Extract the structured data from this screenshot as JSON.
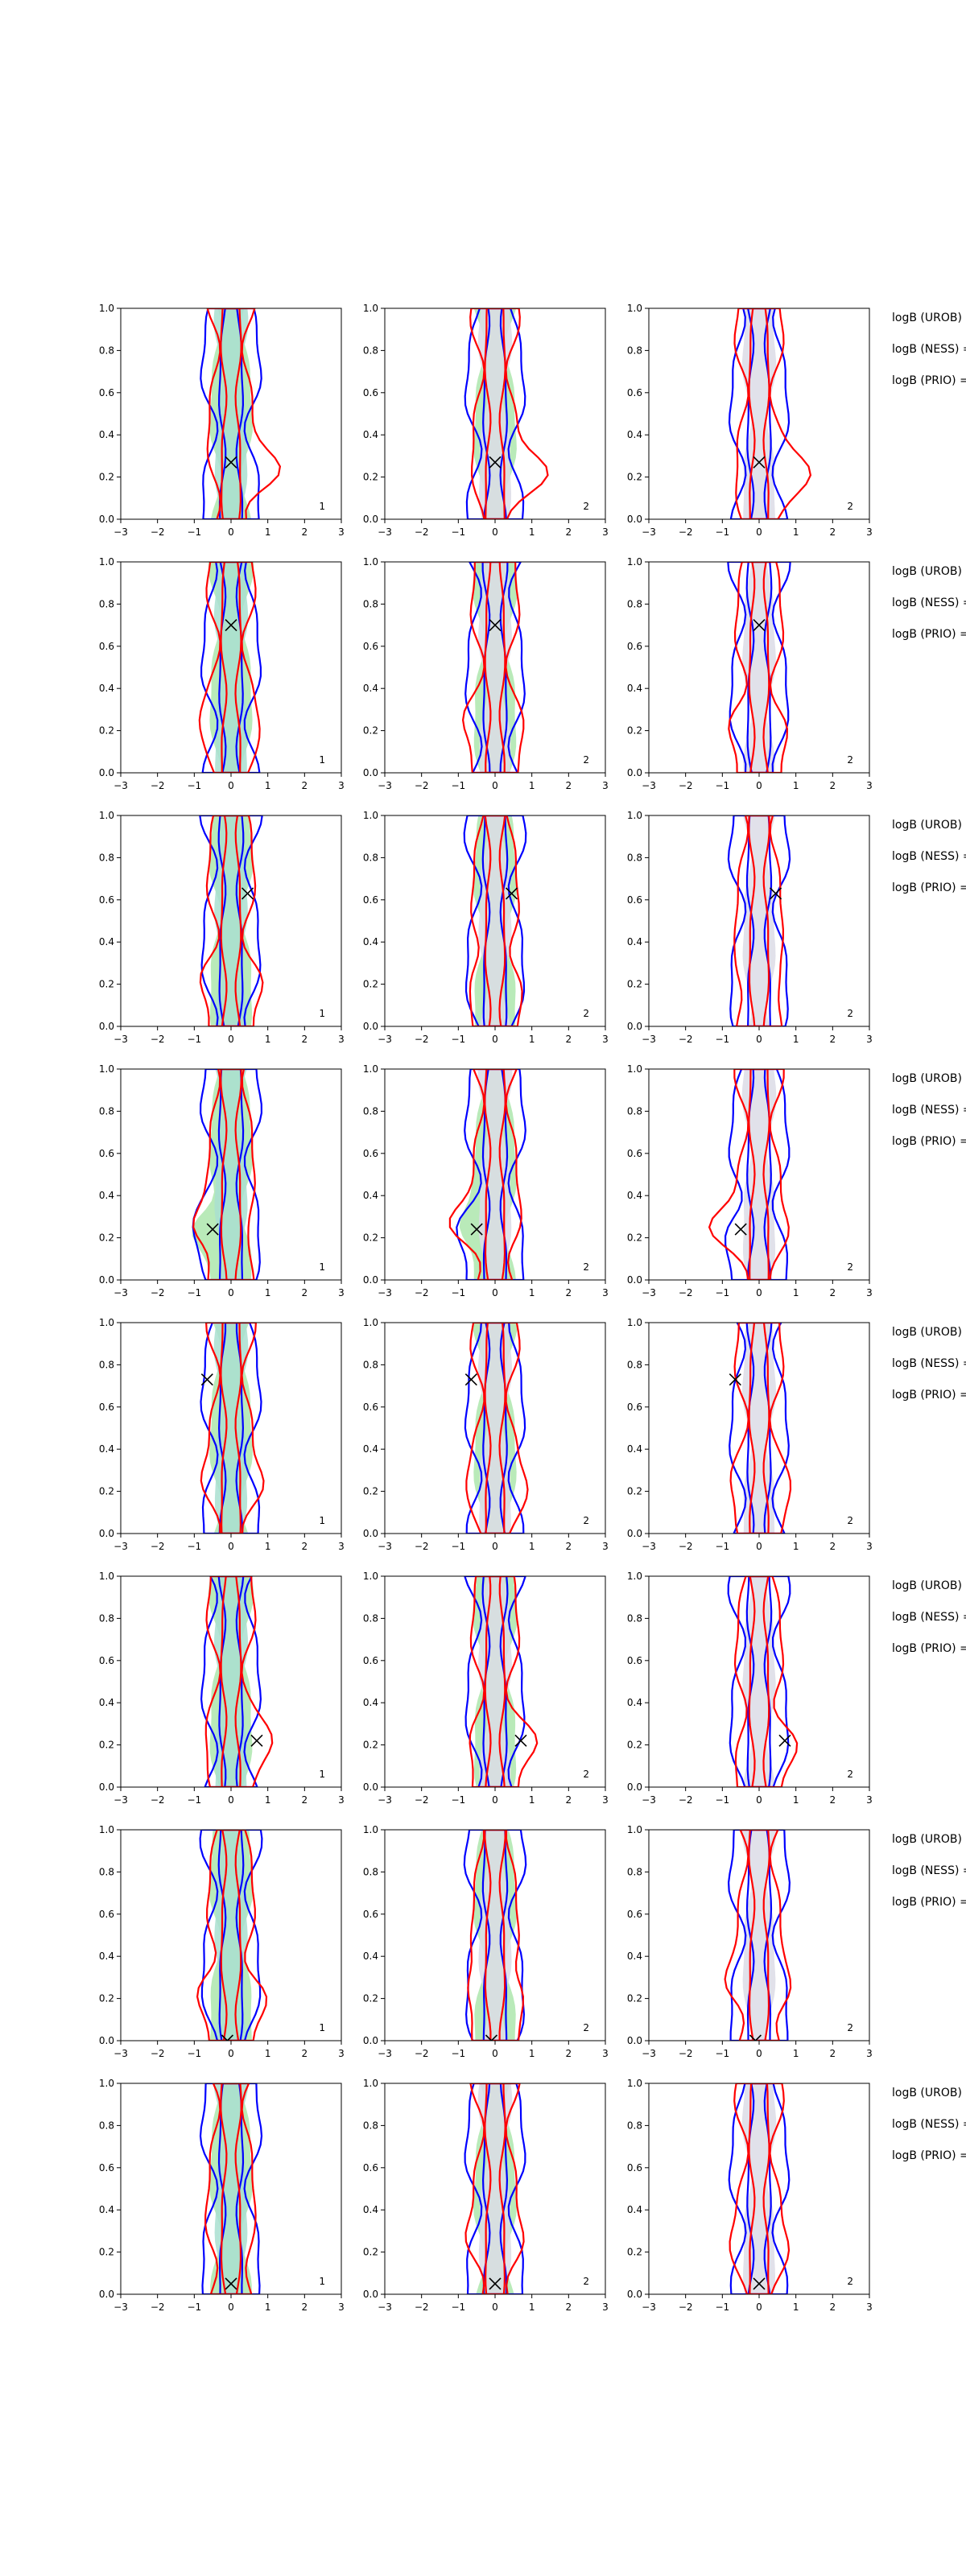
{
  "chart_data": {
    "type": "contour",
    "xlim": [
      -3,
      3
    ],
    "ylim": [
      0,
      1
    ],
    "xticks": [
      -3,
      -2,
      -1,
      0,
      1,
      2,
      3
    ],
    "yticks": [
      0.0,
      0.2,
      0.4,
      0.6,
      0.8,
      1.0
    ],
    "xtick_labels": [
      "−3",
      "−2",
      "−1",
      "0",
      "1",
      "2",
      "3"
    ],
    "ytick_labels": [
      "0.0",
      "0.2",
      "0.4",
      "0.6",
      "0.8",
      "1.0"
    ],
    "colors": {
      "outer_fill": "#b9eab9",
      "inner_fill": "#dcdce6",
      "blue_line": "#0000ff",
      "red_line": "#ff0000",
      "marker": "#000000"
    },
    "column_labels": [
      "1",
      "2",
      "2"
    ],
    "side_labels": [
      "logB (UROB)",
      "logB (NESS)",
      "logB (PRIO)"
    ],
    "side_suffixes": [
      "=",
      "=",
      "="
    ],
    "rows": [
      {
        "marker": [
          0.0,
          0.27
        ],
        "bulge": 0.0,
        "left": 0.0,
        "right": 0.9
      },
      {
        "marker": [
          0.0,
          0.7
        ],
        "bulge": 0.0,
        "left": 0.3,
        "right": 0.2
      },
      {
        "marker": [
          0.45,
          0.63
        ],
        "bulge": 0.0,
        "left": 0.3,
        "right": 0.3
      },
      {
        "marker": [
          -0.5,
          0.24
        ],
        "bulge": 0.5,
        "left": 0.8,
        "right": 0.2
      },
      {
        "marker": [
          -0.65,
          0.73
        ],
        "bulge": 0.0,
        "left": 0.2,
        "right": 0.3
      },
      {
        "marker": [
          0.7,
          0.22
        ],
        "bulge": 0.0,
        "left": 0.1,
        "right": 0.6
      },
      {
        "marker": [
          -0.1,
          0.0
        ],
        "bulge": 0.0,
        "left": 0.5,
        "right": 0.5
      },
      {
        "marker": [
          0.0,
          0.05
        ],
        "bulge": 0.0,
        "left": 0.2,
        "right": 0.2
      }
    ]
  }
}
